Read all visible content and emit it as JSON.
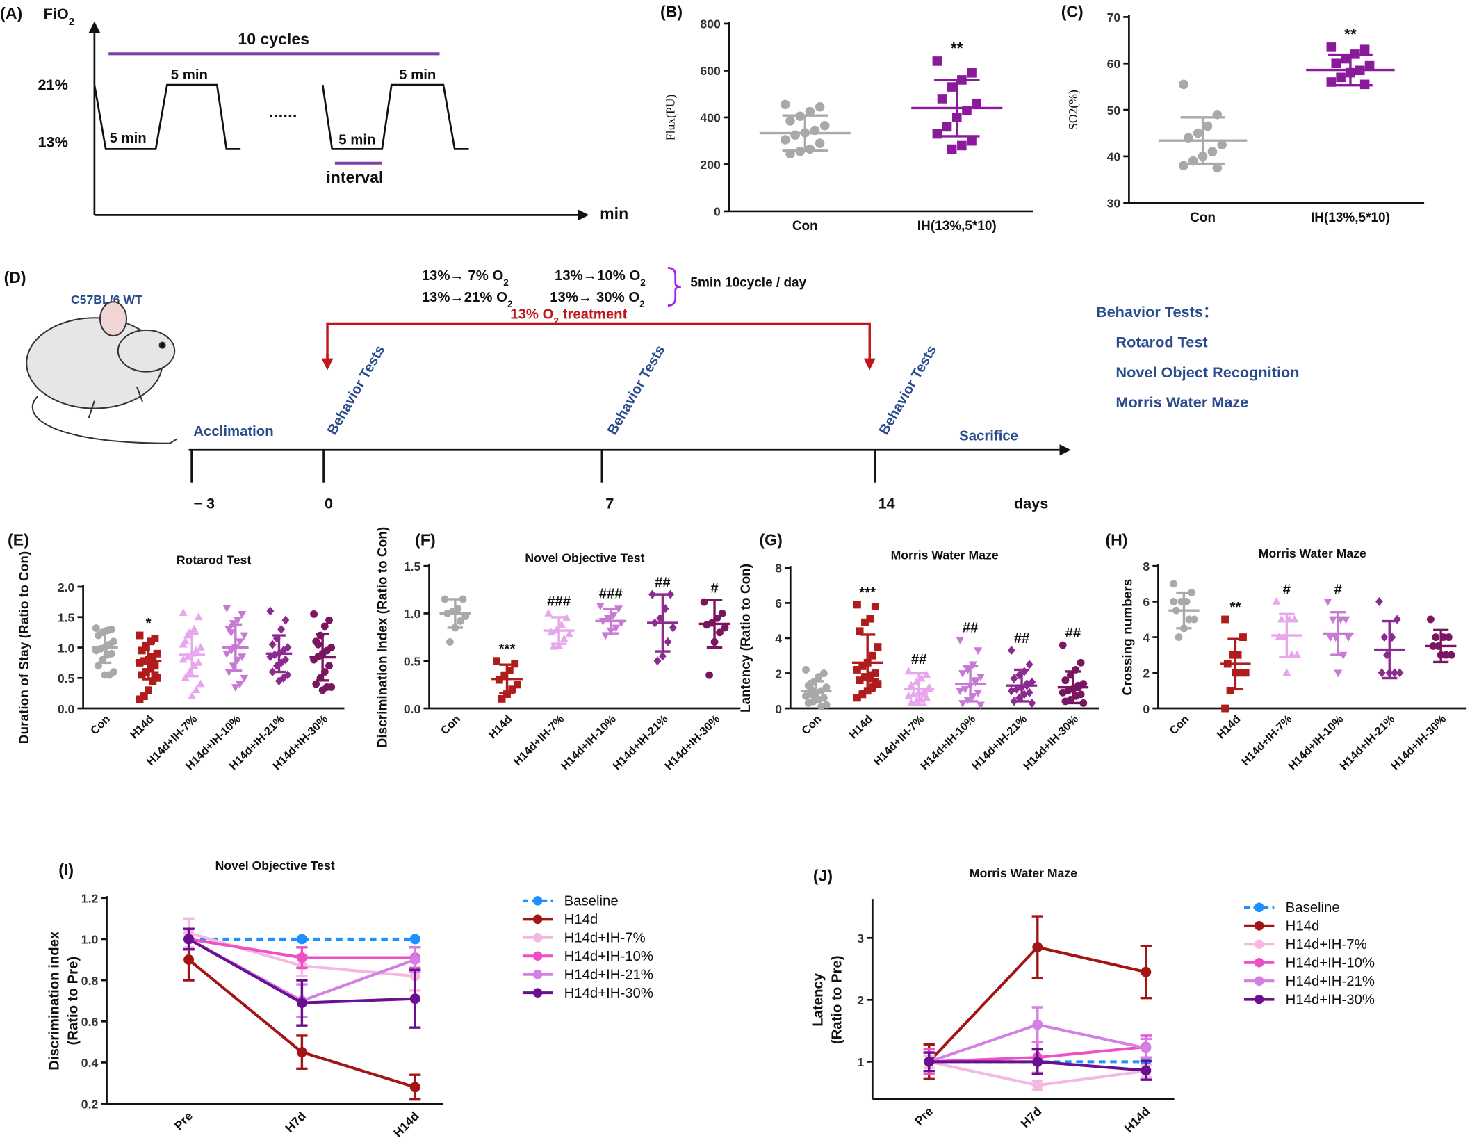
{
  "diagram_a": {
    "label": "(A)",
    "fio": "FiO",
    "fio_sub": "2",
    "cycles": "10 cycles",
    "high": "21%",
    "low": "13%",
    "durations": [
      "5 min",
      "5 min",
      "5 min",
      "5 min"
    ],
    "dots": "......",
    "interval": "interval",
    "xaxis": "min"
  },
  "diagram_d": {
    "label": "(D)",
    "strain": "C57BL/6  WT",
    "conditions": [
      {
        "text": "13%→ 7% O",
        "sub": "2",
        "color": "#8c93e8"
      },
      {
        "text": "13%→10% O",
        "sub": "2",
        "color": "#ff00cc"
      },
      {
        "text": "13%→21% O",
        "sub": "2",
        "color": "#cc66ee"
      },
      {
        "text": "13%→ 30% O",
        "sub": "2",
        "color": "#5a10e0"
      }
    ],
    "schedule": "5min 10cycle / day",
    "treatment": {
      "text": "13% O",
      "sub": "2",
      "rest": " treatment"
    },
    "tests_label": [
      "Behavior Tests",
      "Behavior Tests",
      "Behavior Tests"
    ],
    "acclimation": "Acclimation",
    "sacrifice": "Sacrifice",
    "days": [
      "− 3",
      "0",
      "7",
      "14"
    ],
    "days_unit": "days",
    "tests_title": "Behavior Tests：",
    "tests": [
      "Rotarod Test",
      "Novel Object Recognition",
      "Morris Water Maze"
    ]
  },
  "chart_data": [
    {
      "type": "dotplot",
      "label": "(B)",
      "ylabel": "Flux(PU)",
      "categories": [
        "Con",
        "IH(13%,5*10)"
      ],
      "ylim": [
        0,
        800
      ],
      "yticks": [
        0,
        200,
        400,
        600,
        800
      ],
      "groups": [
        {
          "color": "#a9a9a9",
          "marker": "circle",
          "points": [
            455,
            445,
            425,
            405,
            385,
            365,
            345,
            335,
            325,
            305,
            290,
            265,
            255,
            245
          ],
          "mean": 333,
          "sd": 75
        },
        {
          "color": "#8a1a9b",
          "marker": "square",
          "points": [
            640,
            590,
            560,
            530,
            480,
            460,
            430,
            400,
            360,
            330,
            300,
            280,
            265
          ],
          "mean": 440,
          "sd": 120,
          "annotation": "**"
        }
      ]
    },
    {
      "type": "dotplot",
      "label": "(C)",
      "ylabel": "SO2(%)",
      "categories": [
        "Con",
        "IH(13%,5*10)"
      ],
      "ylim": [
        30,
        70
      ],
      "yticks": [
        30,
        40,
        50,
        60,
        70
      ],
      "groups": [
        {
          "color": "#a9a9a9",
          "marker": "circle",
          "points": [
            55.5,
            49,
            46.5,
            45,
            44,
            42.5,
            41,
            40,
            39,
            38,
            37.5
          ],
          "mean": 43.4,
          "sd": 5
        },
        {
          "color": "#8a1a9b",
          "marker": "square",
          "points": [
            63.5,
            63,
            62,
            61,
            60,
            59.5,
            58.5,
            58,
            57,
            56,
            55.5
          ],
          "mean": 58.6,
          "sd": 3.3,
          "annotation": "**"
        }
      ]
    },
    {
      "type": "dotplot",
      "label": "(E)",
      "title": "Rotarod Test",
      "ylabel": "Duration of Stay (Ratio to Con)",
      "categories": [
        "Con",
        "H14d",
        "H14d+IH-7%",
        "H14d+IH-10%",
        "H14d+IH-21%",
        "H14d+IH-30%"
      ],
      "ylim": [
        0,
        2
      ],
      "yticks": [
        {
          "value": 0,
          "label": "0.0"
        },
        0.5,
        {
          "value": 1,
          "label": "1.0"
        },
        1.5,
        {
          "value": 2,
          "label": "2.0"
        }
      ],
      "groups": [
        {
          "color": "#a9a9a9",
          "marker": "circle",
          "points": [
            1.32,
            1.3,
            1.28,
            1.25,
            1.2,
            1.1,
            1.05,
            1.0,
            0.98,
            0.95,
            0.9,
            0.88,
            0.8,
            0.7,
            0.6,
            0.55,
            0.55
          ],
          "mean": 1.0,
          "sd": 0.25
        },
        {
          "color": "#b01c1c",
          "marker": "square",
          "points": [
            1.2,
            1.15,
            1.1,
            1.0,
            0.95,
            0.9,
            0.85,
            0.8,
            0.78,
            0.75,
            0.7,
            0.68,
            0.6,
            0.55,
            0.5,
            0.45,
            0.3,
            0.2,
            0.15,
            0.55,
            0.65
          ],
          "mean": 0.78,
          "sd": 0.3,
          "annotation": "*"
        },
        {
          "color": "#e8a6ec",
          "marker": "tri-up",
          "points": [
            1.57,
            1.5,
            1.3,
            1.25,
            1.1,
            1.0,
            0.95,
            0.9,
            0.85,
            0.8,
            0.75,
            0.7,
            0.6,
            0.5,
            0.4,
            0.3,
            0.2,
            1.2,
            1.05
          ],
          "mean": 0.88,
          "sd": 0.35
        },
        {
          "color": "#c77ad4",
          "marker": "tri-down",
          "points": [
            1.65,
            1.55,
            1.45,
            1.4,
            1.3,
            1.2,
            1.1,
            1.0,
            0.95,
            0.9,
            0.85,
            0.8,
            0.7,
            0.6,
            0.5,
            0.4,
            0.35,
            1.25
          ],
          "mean": 1.0,
          "sd": 0.38
        },
        {
          "color": "#8b2a8f",
          "marker": "diamond",
          "points": [
            1.6,
            1.45,
            1.3,
            1.15,
            1.05,
            1.0,
            0.95,
            0.9,
            0.88,
            0.85,
            0.8,
            0.75,
            0.7,
            0.6,
            0.55,
            0.5,
            0.45
          ],
          "mean": 0.9,
          "sd": 0.3
        },
        {
          "color": "#7a1560",
          "marker": "circle",
          "points": [
            1.55,
            1.45,
            1.35,
            1.2,
            1.1,
            1.0,
            0.95,
            0.9,
            0.85,
            0.8,
            0.7,
            0.6,
            0.5,
            0.4,
            0.35,
            0.35,
            0.3,
            1.05
          ],
          "mean": 0.84,
          "sd": 0.38
        }
      ]
    },
    {
      "type": "dotplot",
      "label": "(F)",
      "title": "Novel Objective Test",
      "ylabel": "Discrimination Index (Ratio to Con)",
      "categories": [
        "Con",
        "H14d",
        "H14d+IH-7%",
        "H14d+IH-10%",
        "H14d+IH-21%",
        "H14d+IH-30%"
      ],
      "ylim": [
        0,
        1.5
      ],
      "yticks": [
        {
          "value": 0,
          "label": "0.0"
        },
        0.5,
        {
          "value": 1,
          "label": "1.0"
        },
        1.5
      ],
      "groups": [
        {
          "color": "#a9a9a9",
          "marker": "circle",
          "points": [
            1.15,
            1.15,
            1.05,
            1.02,
            1.0,
            0.97,
            0.92,
            0.85,
            0.7
          ],
          "mean": 1.0,
          "sd": 0.15
        },
        {
          "color": "#b01c1c",
          "marker": "square",
          "points": [
            0.5,
            0.47,
            0.4,
            0.35,
            0.3,
            0.25,
            0.2,
            0.15,
            0.1
          ],
          "mean": 0.31,
          "sd": 0.15,
          "annotation": "***"
        },
        {
          "color": "#e8a6ec",
          "marker": "tri-up",
          "points": [
            1.0,
            0.95,
            0.88,
            0.82,
            0.8,
            0.78,
            0.73,
            0.66,
            0.65
          ],
          "mean": 0.82,
          "sd": 0.14,
          "annotation": "###"
        },
        {
          "color": "#c77ad4",
          "marker": "tri-down",
          "points": [
            1.08,
            1.05,
            0.98,
            0.95,
            0.92,
            0.9,
            0.85,
            0.82,
            0.77
          ],
          "mean": 0.92,
          "sd": 0.13,
          "annotation": "###"
        },
        {
          "color": "#8b2a8f",
          "marker": "diamond",
          "points": [
            1.2,
            1.2,
            1.05,
            0.95,
            0.9,
            0.85,
            0.7,
            0.55,
            0.5
          ],
          "mean": 0.9,
          "sd": 0.3,
          "annotation": "##"
        },
        {
          "color": "#7a1560",
          "marker": "circle",
          "points": [
            1.12,
            1.0,
            0.95,
            0.9,
            0.88,
            0.85,
            0.8,
            0.7,
            0.35
          ],
          "mean": 0.89,
          "sd": 0.25,
          "annotation": "#"
        }
      ]
    },
    {
      "type": "dotplot",
      "label": "(G)",
      "title": "Morris Water Maze",
      "ylabel": "Lantency (Ratio to Con)",
      "categories": [
        "Con",
        "H14d",
        "H14d+IH-7%",
        "H14d+IH-10%",
        "H14d+IH-21%",
        "H14d+IH-30%"
      ],
      "ylim": [
        0,
        8
      ],
      "yticks": [
        0,
        2,
        4,
        6,
        8
      ],
      "groups": [
        {
          "color": "#a9a9a9",
          "marker": "circle",
          "points": [
            2.2,
            2.0,
            1.8,
            1.5,
            1.3,
            1.2,
            1.0,
            0.9,
            0.8,
            0.7,
            0.6,
            0.5,
            0.4,
            0.3,
            0.2,
            0.1,
            0.6,
            1.1
          ],
          "mean": 1.0,
          "sd": 0.55
        },
        {
          "color": "#b01c1c",
          "marker": "square",
          "points": [
            5.9,
            5.8,
            5.1,
            4.9,
            4.4,
            3.5,
            3.0,
            2.6,
            2.4,
            2.2,
            2.0,
            1.9,
            1.8,
            1.6,
            1.4,
            1.2,
            1.0,
            0.8,
            0.6,
            1.5,
            1.7
          ],
          "mean": 2.6,
          "sd": 1.6,
          "annotation": "***"
        },
        {
          "color": "#e8a6ec",
          "marker": "tri-up",
          "points": [
            2.1,
            1.9,
            1.7,
            1.5,
            1.3,
            1.1,
            1.0,
            0.9,
            0.8,
            0.7,
            0.6,
            0.5,
            0.4,
            0.3,
            1.2,
            0.8
          ],
          "mean": 1.1,
          "sd": 0.9,
          "annotation": "##"
        },
        {
          "color": "#c77ad4",
          "marker": "tri-down",
          "points": [
            3.9,
            3.3,
            2.5,
            2.2,
            2.0,
            1.8,
            1.5,
            1.3,
            1.1,
            1.0,
            0.9,
            0.7,
            0.5,
            0.3,
            0.2,
            1.6
          ],
          "mean": 1.4,
          "sd": 1.0,
          "annotation": "##"
        },
        {
          "color": "#8b2a8f",
          "marker": "diamond",
          "points": [
            3.3,
            2.5,
            2.1,
            1.9,
            1.7,
            1.5,
            1.3,
            1.2,
            1.1,
            1.0,
            0.9,
            0.8,
            0.6,
            0.4,
            0.3,
            1.4
          ],
          "mean": 1.3,
          "sd": 0.9,
          "annotation": "##"
        },
        {
          "color": "#7a1560",
          "marker": "circle",
          "points": [
            3.6,
            2.6,
            2.2,
            1.9,
            1.6,
            1.4,
            1.2,
            1.1,
            1.0,
            0.9,
            0.8,
            0.7,
            0.5,
            0.4,
            0.3,
            1.3
          ],
          "mean": 1.2,
          "sd": 0.9,
          "annotation": "##"
        }
      ]
    },
    {
      "type": "dotplot",
      "label": "(H)",
      "title": "Morris Water Maze",
      "ylabel": "Crossing numbers",
      "categories": [
        "Con",
        "H14d",
        "H14d+IH-7%",
        "H14d+IH-10%",
        "H14d+IH-21%",
        "H14d+IH-30%"
      ],
      "ylim": [
        0,
        8
      ],
      "yticks": [
        0,
        2,
        4,
        6,
        8
      ],
      "groups": [
        {
          "color": "#a9a9a9",
          "marker": "circle",
          "points": [
            7,
            6.5,
            6,
            6,
            5.5,
            5,
            5,
            4.5,
            4,
            6
          ],
          "mean": 5.5,
          "sd": 1.0
        },
        {
          "color": "#b01c1c",
          "marker": "square",
          "points": [
            5,
            4,
            3,
            3,
            2.5,
            2,
            2,
            2,
            1,
            0
          ],
          "mean": 2.5,
          "sd": 1.4,
          "annotation": "**"
        },
        {
          "color": "#e8a6ec",
          "marker": "tri-up",
          "points": [
            6,
            5,
            5,
            4,
            4,
            3,
            3,
            2,
            5
          ],
          "mean": 4.1,
          "sd": 1.2,
          "annotation": "#"
        },
        {
          "color": "#c77ad4",
          "marker": "tri-down",
          "points": [
            6,
            5,
            5,
            4,
            4,
            4,
            3,
            2,
            5
          ],
          "mean": 4.2,
          "sd": 1.2,
          "annotation": "#"
        },
        {
          "color": "#8b2a8f",
          "marker": "diamond",
          "points": [
            6,
            5,
            4,
            3,
            2,
            2,
            2,
            2,
            4
          ],
          "mean": 3.3,
          "sd": 1.6
        },
        {
          "color": "#7a1560",
          "marker": "circle",
          "points": [
            5,
            4,
            4,
            3.5,
            3.5,
            3,
            3,
            3,
            4
          ],
          "mean": 3.5,
          "sd": 0.9
        }
      ]
    },
    {
      "type": "line",
      "label": "(I)",
      "title": "Novel Objective Test",
      "ylabel": [
        "Discrimination index",
        "(Ratio to Pre)"
      ],
      "categories": [
        "Pre",
        "H7d",
        "H14d"
      ],
      "ylim": [
        0.2,
        1.2
      ],
      "yticks": [
        0.2,
        0.4,
        0.6,
        0.8,
        {
          "value": 1,
          "label": "1.0"
        },
        1.2
      ],
      "series": [
        {
          "name": "Baseline",
          "color": "#1e90ff",
          "dashed": true,
          "values": [
            1,
            1,
            1
          ]
        },
        {
          "name": "H14d",
          "color": "#a31515",
          "values": [
            0.9,
            0.45,
            0.28
          ],
          "errors": [
            0.1,
            0.08,
            0.06
          ]
        },
        {
          "name": "H14d+IH-7%",
          "color": "#f5b8e0",
          "values": [
            1.03,
            0.87,
            0.82
          ],
          "errors": [
            0.07,
            0.05,
            0.07
          ]
        },
        {
          "name": "H14d+IH-10%",
          "color": "#ee4fc6",
          "values": [
            1.0,
            0.91,
            0.91
          ],
          "errors": [
            0.05,
            0.05,
            0.05
          ]
        },
        {
          "name": "H14d+IH-21%",
          "color": "#d27fe6",
          "values": [
            1.0,
            0.7,
            0.9
          ],
          "errors": [
            0.05,
            0.08,
            0.06
          ]
        },
        {
          "name": "H14d+IH-30%",
          "color": "#6a0f8e",
          "values": [
            1.0,
            0.69,
            0.71
          ],
          "errors": [
            0.05,
            0.11,
            0.14
          ]
        }
      ]
    },
    {
      "type": "line",
      "label": "(J)",
      "title": "Morris Water Maze",
      "ylabel": [
        "Latency",
        "(Ratio to Pre)"
      ],
      "categories": [
        "Pre",
        "H7d",
        "H14d"
      ],
      "ylim": [
        0.4,
        3.6
      ],
      "yticks": [
        1,
        2,
        3
      ],
      "series": [
        {
          "name": "Baseline",
          "color": "#1e90ff",
          "dashed": true,
          "values": [
            1,
            1,
            1
          ]
        },
        {
          "name": "H14d",
          "color": "#a31515",
          "values": [
            1,
            2.85,
            2.45
          ],
          "errors": [
            0.28,
            0.5,
            0.42
          ]
        },
        {
          "name": "H14d+IH-7%",
          "color": "#f5b8e0",
          "values": [
            1,
            0.62,
            0.85
          ],
          "errors": [
            0.1,
            0.07,
            0.1
          ]
        },
        {
          "name": "H14d+IH-10%",
          "color": "#ee4fc6",
          "values": [
            1,
            1.07,
            1.24
          ],
          "errors": [
            0.2,
            0.25,
            0.18
          ]
        },
        {
          "name": "H14d+IH-21%",
          "color": "#d27fe6",
          "values": [
            1,
            1.6,
            1.22
          ],
          "errors": [
            0.15,
            0.28,
            0.15
          ]
        },
        {
          "name": "H14d+IH-30%",
          "color": "#6a0f8e",
          "values": [
            1,
            1.0,
            0.86
          ],
          "errors": [
            0.15,
            0.2,
            0.15
          ]
        }
      ]
    }
  ]
}
